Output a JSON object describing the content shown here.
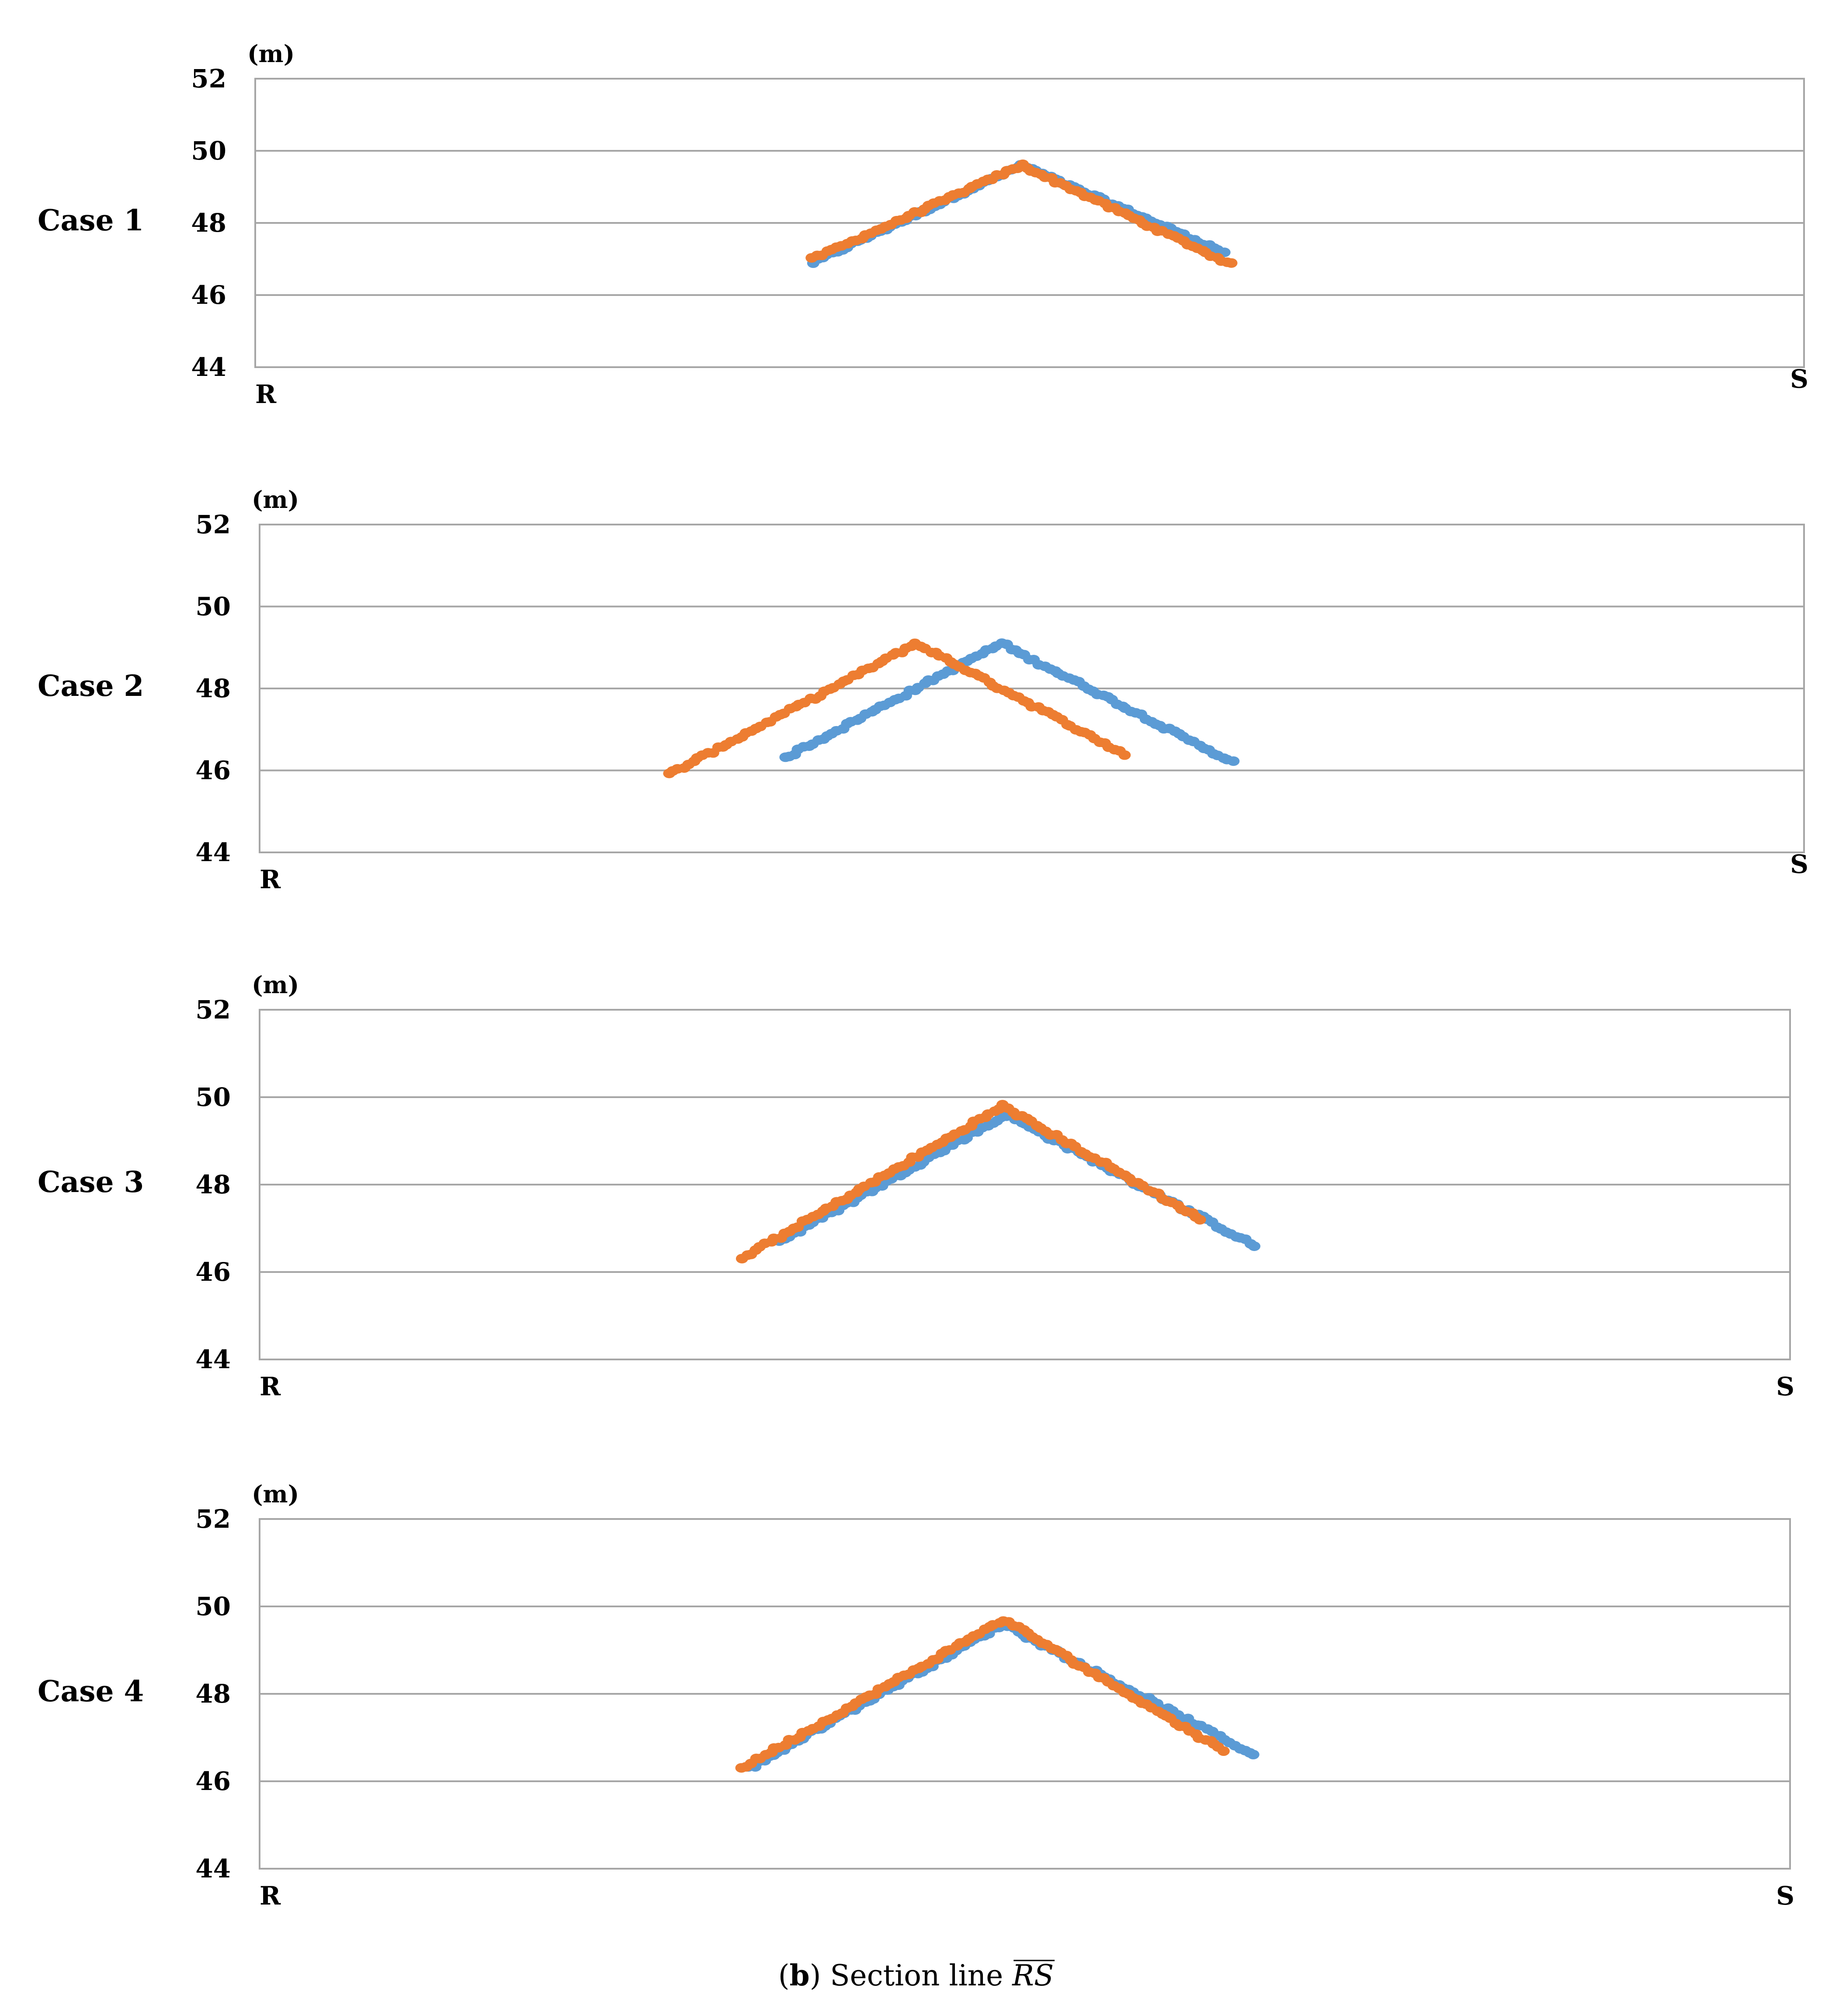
{
  "caption": {
    "prefix_open": "(",
    "prefix_bold": "b",
    "prefix_close": ")",
    "text": " Section line ",
    "overline_text": "RS"
  },
  "colors": {
    "series_a": "#5b9bd5",
    "series_b": "#ed7d31",
    "grid": "#a6a6a6",
    "frame": "#a6a6a6",
    "text": "#000000"
  },
  "chart_data": [
    {
      "type": "scatter",
      "case_label": "Case 1",
      "unit_label": "(m)",
      "x_start_label": "R",
      "x_end_label": "S",
      "xlim": [
        0,
        100
      ],
      "ylim": [
        44,
        52
      ],
      "yticks": [
        44,
        46,
        48,
        50,
        52
      ],
      "grid": true,
      "series": [
        {
          "color": "#5b9bd5",
          "points": [
            [
              36,
              46.9
            ],
            [
              49.5,
              49.6
            ],
            [
              62.5,
              47.2
            ]
          ]
        },
        {
          "color": "#ed7d31",
          "points": [
            [
              36,
              47.0
            ],
            [
              49.5,
              49.6
            ],
            [
              63,
              46.85
            ]
          ]
        }
      ]
    },
    {
      "type": "scatter",
      "case_label": "Case 2",
      "unit_label": "(m)",
      "x_start_label": "R",
      "x_end_label": "S",
      "xlim": [
        0,
        100
      ],
      "ylim": [
        44,
        52
      ],
      "yticks": [
        44,
        46,
        48,
        50,
        52
      ],
      "grid": true,
      "series": [
        {
          "color": "#5b9bd5",
          "points": [
            [
              34,
              46.3
            ],
            [
              48,
              49.1
            ],
            [
              63,
              46.2
            ]
          ]
        },
        {
          "color": "#ed7d31",
          "points": [
            [
              26.5,
              45.9
            ],
            [
              42.5,
              49.1
            ],
            [
              56,
              46.4
            ]
          ]
        }
      ]
    },
    {
      "type": "scatter",
      "case_label": "Case 3",
      "unit_label": "(m)",
      "x_start_label": "R",
      "x_end_label": "S",
      "xlim": [
        0,
        100
      ],
      "ylim": [
        44,
        52
      ],
      "yticks": [
        44,
        46,
        48,
        50,
        52
      ],
      "grid": true,
      "series": [
        {
          "color": "#5b9bd5",
          "points": [
            [
              34,
              46.7
            ],
            [
              48.8,
              49.6
            ],
            [
              65,
              46.6
            ]
          ]
        },
        {
          "color": "#ed7d31",
          "points": [
            [
              31.5,
              46.3
            ],
            [
              48.6,
              49.8
            ],
            [
              61.5,
              47.2
            ]
          ]
        }
      ]
    },
    {
      "type": "scatter",
      "case_label": "Case 4",
      "unit_label": "(m)",
      "x_start_label": "R",
      "x_end_label": "S",
      "xlim": [
        0,
        100
      ],
      "ylim": [
        44,
        52
      ],
      "yticks": [
        44,
        46,
        48,
        50,
        52
      ],
      "grid": true,
      "series": [
        {
          "color": "#5b9bd5",
          "points": [
            [
              32,
              46.3
            ],
            [
              48.6,
              49.6
            ],
            [
              65,
              46.6
            ]
          ]
        },
        {
          "color": "#ed7d31",
          "points": [
            [
              31.5,
              46.3
            ],
            [
              48.6,
              49.7
            ],
            [
              63,
              46.7
            ]
          ]
        }
      ]
    }
  ]
}
